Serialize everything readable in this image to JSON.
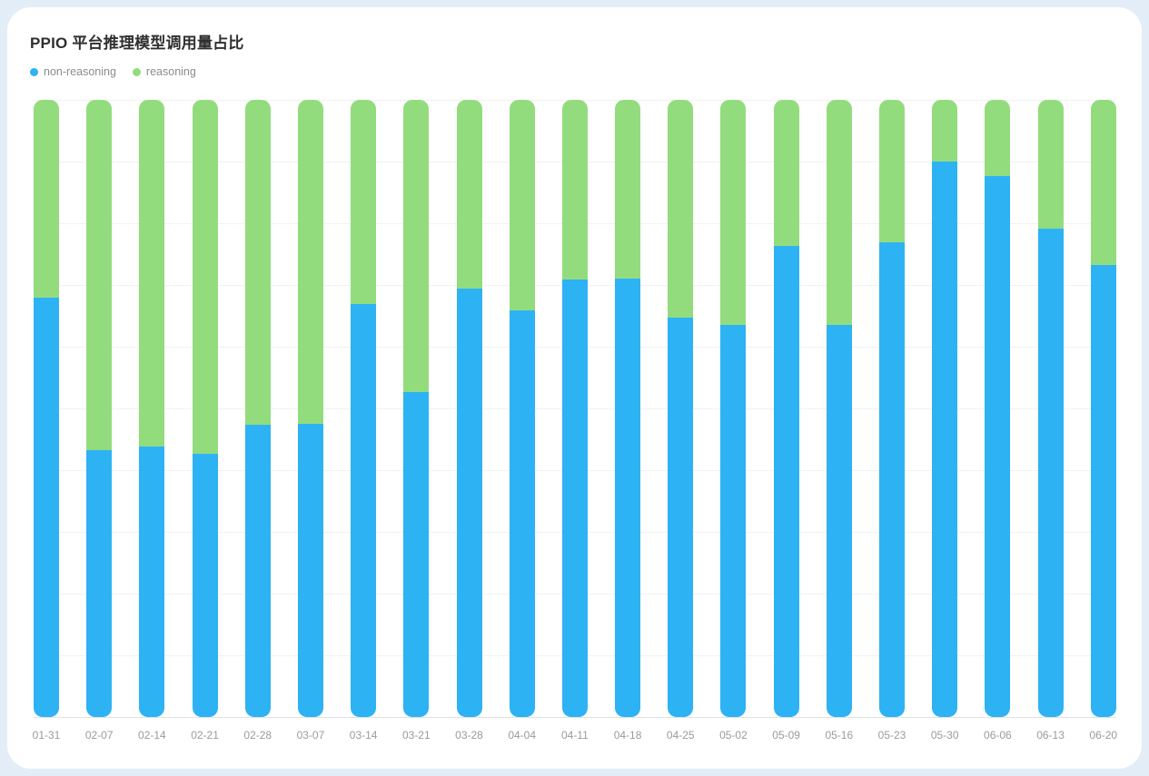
{
  "page": {
    "background_color": "#e2edf8",
    "card_color": "#ffffff"
  },
  "header": {
    "title": "PPIO 平台推理模型调用量占比"
  },
  "legend": {
    "items": [
      {
        "label": "non-reasoning",
        "color": "#2db2f4"
      },
      {
        "label": "reasoning",
        "color": "#93dc7e"
      }
    ]
  },
  "chart_data": {
    "type": "bar",
    "stacked": true,
    "unit": "percent",
    "title": "PPIO 平台推理模型调用量占比",
    "legend_position": "top-left",
    "grid": true,
    "ylim": [
      0,
      100
    ],
    "gridline_interval_percent": 10,
    "y_axis_labels_visible": false,
    "categories": [
      "01-31",
      "02-07",
      "02-14",
      "02-21",
      "02-28",
      "03-07",
      "03-14",
      "03-21",
      "03-28",
      "04-04",
      "04-11",
      "04-18",
      "04-25",
      "05-02",
      "05-09",
      "05-16",
      "05-23",
      "05-30",
      "06-06",
      "06-13",
      "06-20"
    ],
    "series": [
      {
        "name": "non-reasoning",
        "color": "#2db2f4",
        "values": [
          68.0,
          43.2,
          43.8,
          42.6,
          47.4,
          47.5,
          66.9,
          52.6,
          69.4,
          65.9,
          70.9,
          71.0,
          64.7,
          63.5,
          76.3,
          63.5,
          76.9,
          90.0,
          87.6,
          79.1,
          73.2
        ]
      },
      {
        "name": "reasoning",
        "color": "#93dc7e",
        "values": [
          32.0,
          56.8,
          56.2,
          57.4,
          52.6,
          52.5,
          33.1,
          47.4,
          30.6,
          34.1,
          29.1,
          29.0,
          35.3,
          36.5,
          23.7,
          36.5,
          23.1,
          10.0,
          12.4,
          20.9,
          26.8
        ]
      }
    ]
  }
}
